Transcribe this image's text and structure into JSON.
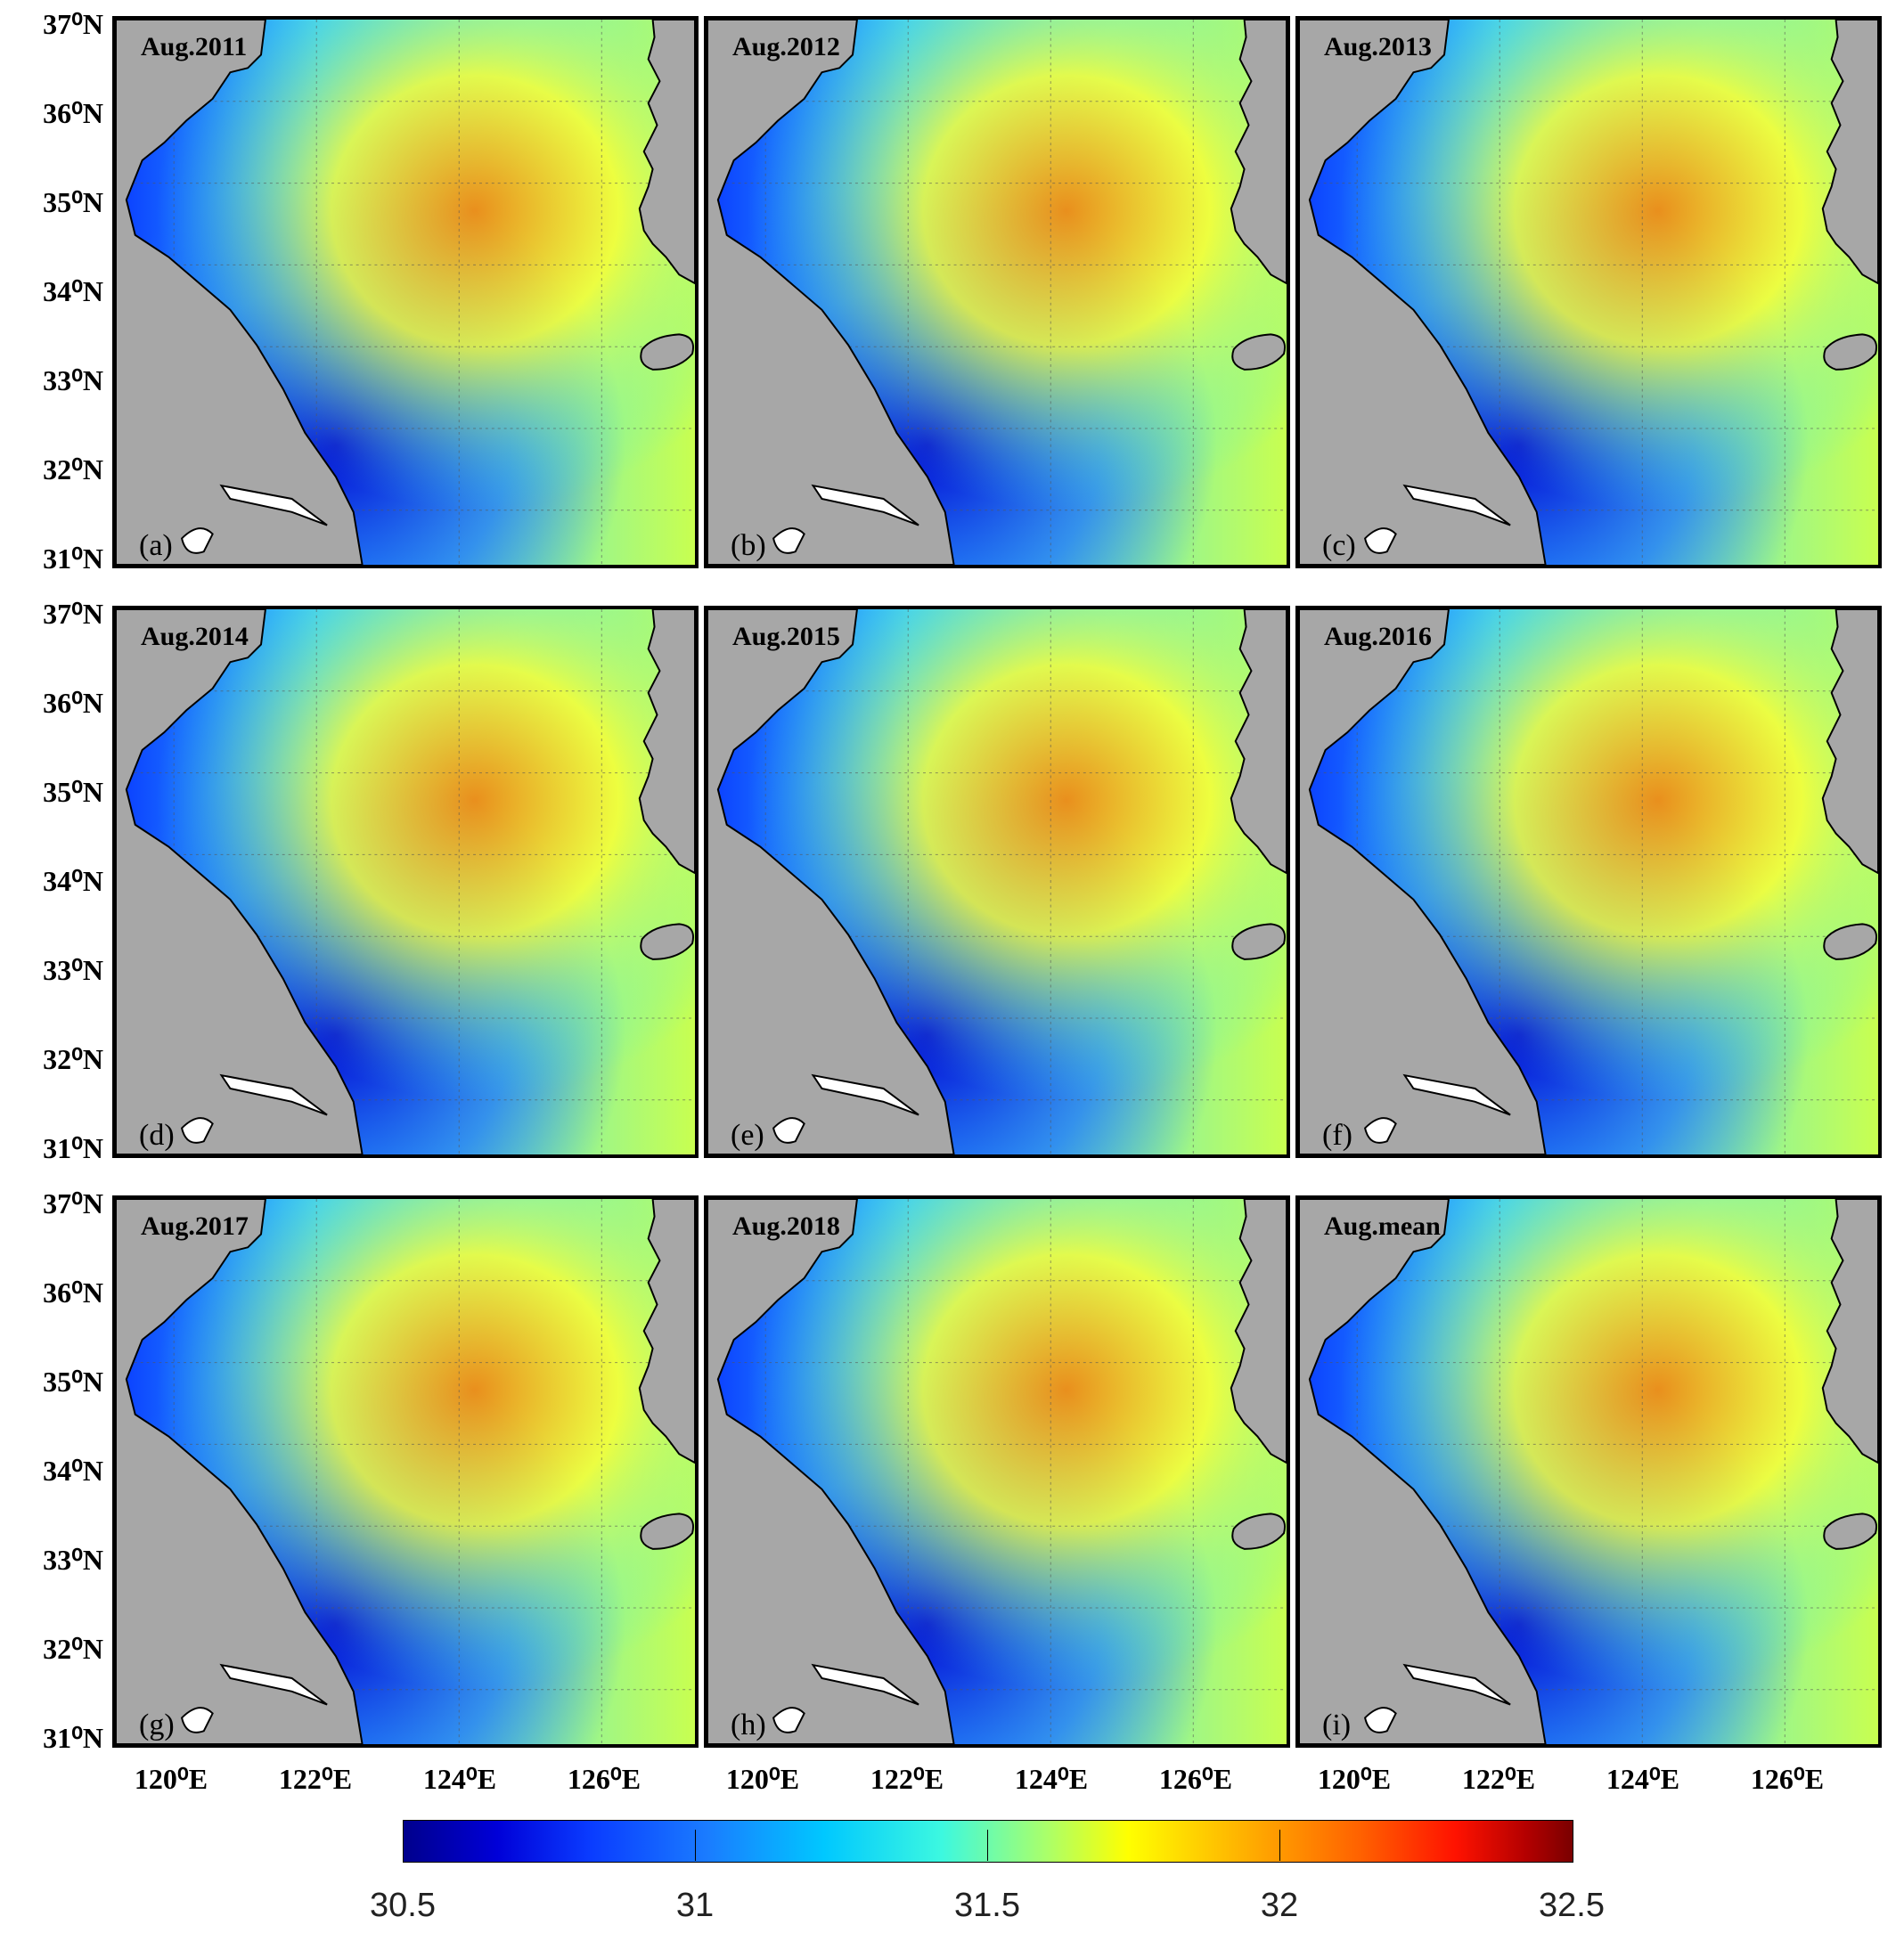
{
  "panels": [
    {
      "title": "Aug.2011",
      "letter": "(a)"
    },
    {
      "title": "Aug.2012",
      "letter": "(b)"
    },
    {
      "title": "Aug.2013",
      "letter": "(c)"
    },
    {
      "title": "Aug.2014",
      "letter": "(d)"
    },
    {
      "title": "Aug.2015",
      "letter": "(e)"
    },
    {
      "title": "Aug.2016",
      "letter": "(f)"
    },
    {
      "title": "Aug.2017",
      "letter": "(g)"
    },
    {
      "title": "Aug.2018",
      "letter": "(h)"
    },
    {
      "title": "Aug.mean",
      "letter": "(i)"
    }
  ],
  "latitude_labels": [
    "37⁰N",
    "36⁰N",
    "35⁰N",
    "34⁰N",
    "33⁰N",
    "32⁰N",
    "31⁰N"
  ],
  "longitude_labels": [
    "120⁰E",
    "122⁰E",
    "124⁰E",
    "126⁰E"
  ],
  "colorbar": {
    "min": 30.5,
    "max": 32.5,
    "ticks": [
      "30.5",
      "31",
      "31.5",
      "32",
      "32.5"
    ]
  },
  "colors": {
    "land": "#a7a7a7",
    "low": "#0000d0",
    "mid": "#3ff0e6",
    "high": "#ff8000"
  }
}
